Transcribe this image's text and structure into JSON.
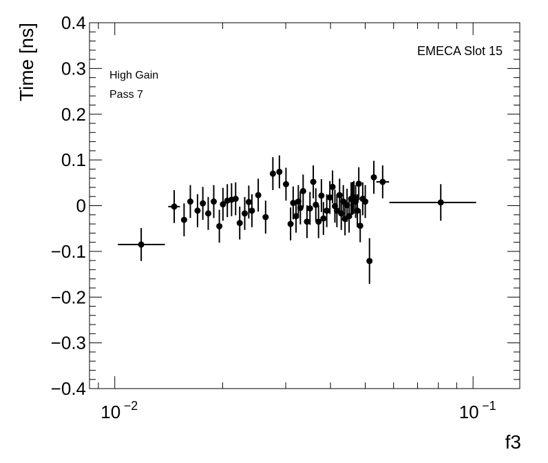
{
  "chart_data": {
    "type": "scatter",
    "xscale": "log",
    "xlim": [
      0.0085,
      0.135
    ],
    "ylim": [
      -0.4,
      0.4
    ],
    "xlabel": "f3",
    "ylabel": "Time [ns]",
    "annotations": {
      "slot": "EMECA Slot 15",
      "gain": "High Gain",
      "pass": "Pass 7"
    },
    "ytick_values": [
      -0.4,
      -0.3,
      -0.2,
      -0.1,
      0,
      0.1,
      0.2,
      0.3,
      0.4
    ],
    "ytick_labels": [
      "−0.4",
      "−0.3",
      "−0.2",
      "−0.1",
      "0",
      "0.1",
      "0.2",
      "0.3",
      "0.4"
    ],
    "xtick_major": [
      {
        "value": 0.01,
        "base": "10",
        "exp": "−2"
      },
      {
        "value": 0.1,
        "base": "10",
        "exp": "−1"
      }
    ],
    "marker_color": "#000000",
    "points": [
      {
        "x": 0.01185,
        "y": -0.085,
        "xerr": [
          0.0102,
          0.0138
        ],
        "yerr": 0.036
      },
      {
        "x": 0.01465,
        "y": -0.002,
        "xerr": [
          0.0141,
          0.0152
        ],
        "yerr": 0.036
      },
      {
        "x": 0.01561,
        "y": -0.031,
        "xerr": null,
        "yerr": 0.036
      },
      {
        "x": 0.01625,
        "y": 0.009,
        "xerr": null,
        "yerr": 0.036
      },
      {
        "x": 0.01702,
        "y": -0.011,
        "xerr": null,
        "yerr": 0.036
      },
      {
        "x": 0.01761,
        "y": 0.005,
        "xerr": null,
        "yerr": 0.036
      },
      {
        "x": 0.01823,
        "y": -0.017,
        "xerr": null,
        "yerr": 0.036
      },
      {
        "x": 0.01889,
        "y": 0.009,
        "xerr": null,
        "yerr": 0.036
      },
      {
        "x": 0.01958,
        "y": -0.045,
        "xerr": null,
        "yerr": 0.036
      },
      {
        "x": 0.02004,
        "y": 0.003,
        "xerr": null,
        "yerr": 0.036
      },
      {
        "x": 0.02061,
        "y": 0.011,
        "xerr": null,
        "yerr": 0.036
      },
      {
        "x": 0.02118,
        "y": 0.013,
        "xerr": null,
        "yerr": 0.036
      },
      {
        "x": 0.02174,
        "y": 0.015,
        "xerr": null,
        "yerr": 0.036
      },
      {
        "x": 0.02232,
        "y": -0.038,
        "xerr": null,
        "yerr": 0.036
      },
      {
        "x": 0.02305,
        "y": -0.017,
        "xerr": null,
        "yerr": 0.036
      },
      {
        "x": 0.02366,
        "y": 0.008,
        "xerr": null,
        "yerr": 0.036
      },
      {
        "x": 0.02414,
        "y": -0.011,
        "xerr": null,
        "yerr": 0.036
      },
      {
        "x": 0.02514,
        "y": 0.023,
        "xerr": null,
        "yerr": 0.036
      },
      {
        "x": 0.02636,
        "y": -0.025,
        "xerr": null,
        "yerr": 0.036
      },
      {
        "x": 0.02762,
        "y": 0.07,
        "xerr": null,
        "yerr": 0.036
      },
      {
        "x": 0.0288,
        "y": 0.074,
        "xerr": null,
        "yerr": 0.036
      },
      {
        "x": 0.03005,
        "y": 0.047,
        "xerr": null,
        "yerr": 0.036
      },
      {
        "x": 0.03095,
        "y": -0.04,
        "xerr": null,
        "yerr": 0.036
      },
      {
        "x": 0.03147,
        "y": 0.006,
        "xerr": null,
        "yerr": 0.036
      },
      {
        "x": 0.03205,
        "y": -0.023,
        "xerr": null,
        "yerr": 0.036
      },
      {
        "x": 0.03253,
        "y": 0.009,
        "xerr": null,
        "yerr": 0.036
      },
      {
        "x": 0.03296,
        "y": -0.005,
        "xerr": null,
        "yerr": 0.036
      },
      {
        "x": 0.03355,
        "y": 0.032,
        "xerr": null,
        "yerr": 0.036
      },
      {
        "x": 0.03439,
        "y": -0.035,
        "xerr": null,
        "yerr": 0.036
      },
      {
        "x": 0.03506,
        "y": -0.006,
        "xerr": null,
        "yerr": 0.036
      },
      {
        "x": 0.03581,
        "y": 0.052,
        "xerr": null,
        "yerr": 0.036
      },
      {
        "x": 0.0364,
        "y": 0.002,
        "xerr": null,
        "yerr": 0.036
      },
      {
        "x": 0.03704,
        "y": -0.035,
        "xerr": null,
        "yerr": 0.036
      },
      {
        "x": 0.03773,
        "y": 0.022,
        "xerr": null,
        "yerr": 0.036
      },
      {
        "x": 0.03822,
        "y": -0.028,
        "xerr": null,
        "yerr": 0.036
      },
      {
        "x": 0.03905,
        "y": -0.011,
        "xerr": null,
        "yerr": 0.036
      },
      {
        "x": 0.03984,
        "y": 0.018,
        "xerr": null,
        "yerr": 0.036
      },
      {
        "x": 0.04053,
        "y": 0.041,
        "xerr": null,
        "yerr": 0.036
      },
      {
        "x": 0.04115,
        "y": -0.001,
        "xerr": null,
        "yerr": 0.036
      },
      {
        "x": 0.04168,
        "y": -0.011,
        "xerr": null,
        "yerr": 0.036
      },
      {
        "x": 0.04241,
        "y": 0.023,
        "xerr": null,
        "yerr": 0.036
      },
      {
        "x": 0.04287,
        "y": -0.017,
        "xerr": null,
        "yerr": 0.036
      },
      {
        "x": 0.04343,
        "y": 0.009,
        "xerr": null,
        "yerr": 0.036
      },
      {
        "x": 0.04391,
        "y": -0.029,
        "xerr": null,
        "yerr": 0.036
      },
      {
        "x": 0.04449,
        "y": 0.001,
        "xerr": null,
        "yerr": 0.036
      },
      {
        "x": 0.04508,
        "y": -0.023,
        "xerr": null,
        "yerr": 0.036
      },
      {
        "x": 0.04567,
        "y": 0.015,
        "xerr": null,
        "yerr": 0.036
      },
      {
        "x": 0.04608,
        "y": 0.016,
        "xerr": null,
        "yerr": 0.036
      },
      {
        "x": 0.0465,
        "y": 0.018,
        "xerr": null,
        "yerr": 0.036
      },
      {
        "x": 0.04702,
        "y": 0.009,
        "xerr": null,
        "yerr": 0.036
      },
      {
        "x": 0.04753,
        "y": -0.011,
        "xerr": null,
        "yerr": 0.036
      },
      {
        "x": 0.04797,
        "y": 0.048,
        "xerr": null,
        "yerr": 0.036
      },
      {
        "x": 0.04841,
        "y": -0.044,
        "xerr": null,
        "yerr": 0.036
      },
      {
        "x": 0.0492,
        "y": 0.015,
        "xerr": null,
        "yerr": 0.036
      },
      {
        "x": 0.05001,
        "y": 0.009,
        "xerr": null,
        "yerr": 0.036
      },
      {
        "x": 0.05139,
        "y": -0.121,
        "xerr": null,
        "yerr": 0.05
      },
      {
        "x": 0.05285,
        "y": 0.062,
        "xerr": null,
        "yerr": 0.036
      },
      {
        "x": 0.05593,
        "y": 0.052,
        "xerr": [
          0.0537,
          0.0583
        ],
        "yerr": 0.036
      },
      {
        "x": 0.08125,
        "y": 0.007,
        "xerr": [
          0.0584,
          0.102
        ],
        "yerr": 0.04
      }
    ]
  }
}
